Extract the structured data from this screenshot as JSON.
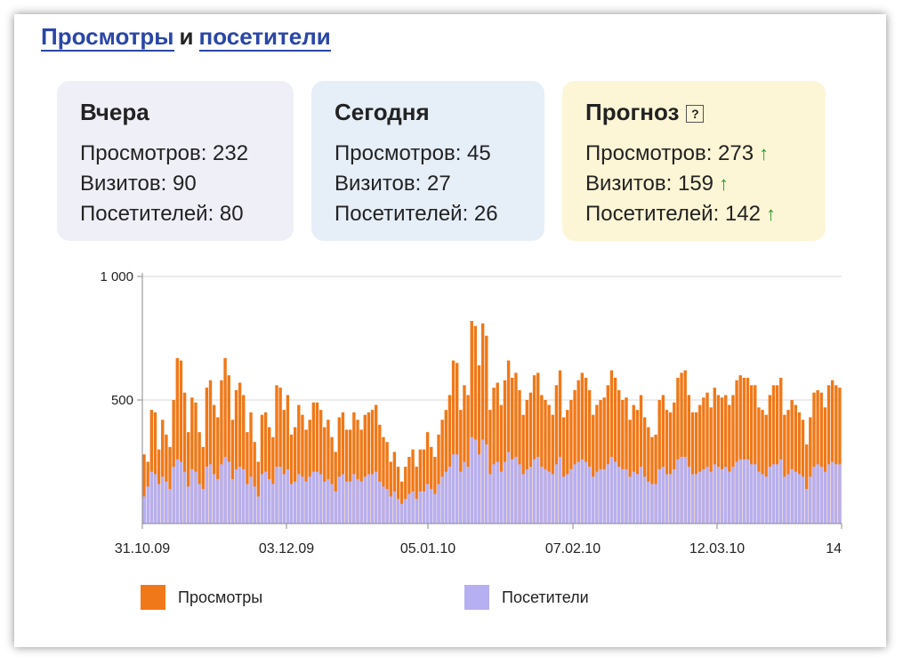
{
  "header": {
    "link1": "Просмотры",
    "conj": "и",
    "link2": "посетители"
  },
  "cards": [
    {
      "title": "Вчера",
      "rows": [
        "Просмотров: 232",
        "Визитов: 90",
        "Посетителей: 80"
      ],
      "bg": "#efeff8"
    },
    {
      "title": "Сегодня",
      "rows": [
        "Просмотров: 45",
        "Визитов: 27",
        "Посетителей: 26"
      ],
      "bg": "#e6eef8"
    },
    {
      "title": "Прогноз",
      "help": "?",
      "rows": [
        "Просмотров: 273",
        "Визитов: 159",
        "Посетителей: 142"
      ],
      "arrow": "↑",
      "bg": "#fdf6d6"
    }
  ],
  "chart_data": {
    "type": "bar",
    "y_ticks": [
      "1 000",
      "500"
    ],
    "ylim": [
      0,
      1000
    ],
    "x_tick_labels": [
      "31.10.09",
      "03.12.09",
      "05.01.10",
      "07.02.10",
      "12.03.10",
      "14"
    ],
    "series": [
      {
        "name": "Просмотры",
        "color": "#f07818",
        "values": [
          280,
          250,
          460,
          450,
          300,
          420,
          360,
          310,
          500,
          670,
          660,
          530,
          370,
          510,
          490,
          370,
          310,
          550,
          580,
          480,
          430,
          580,
          670,
          600,
          420,
          540,
          570,
          520,
          370,
          450,
          330,
          250,
          440,
          450,
          390,
          350,
          560,
          550,
          460,
          520,
          360,
          390,
          480,
          440,
          380,
          420,
          490,
          490,
          460,
          390,
          420,
          350,
          290,
          430,
          450,
          380,
          380,
          450,
          420,
          380,
          440,
          450,
          460,
          480,
          400,
          350,
          330,
          250,
          290,
          230,
          170,
          230,
          270,
          300,
          230,
          300,
          300,
          370,
          310,
          270,
          360,
          420,
          460,
          520,
          660,
          650,
          460,
          560,
          520,
          820,
          800,
          640,
          810,
          760,
          460,
          550,
          570,
          480,
          580,
          660,
          590,
          610,
          540,
          440,
          500,
          530,
          600,
          610,
          520,
          500,
          480,
          440,
          560,
          620,
          430,
          460,
          500,
          540,
          580,
          610,
          590,
          540,
          440,
          480,
          500,
          510,
          560,
          620,
          590,
          540,
          500,
          510,
          420,
          480,
          460,
          520,
          430,
          390,
          350,
          360,
          500,
          520,
          460,
          450,
          490,
          590,
          610,
          620,
          520,
          450,
          450,
          480,
          510,
          530,
          470,
          550,
          520,
          510,
          520,
          480,
          520,
          580,
          600,
          590,
          590,
          560,
          560,
          470,
          460,
          440,
          520,
          560,
          560,
          590,
          440,
          460,
          500,
          480,
          450,
          420,
          320,
          430,
          530,
          540,
          530,
          470,
          560,
          580,
          560,
          550
        ]
      },
      {
        "name": "Посетители",
        "color": "#b6aff2",
        "values": [
          110,
          150,
          210,
          200,
          160,
          190,
          170,
          140,
          230,
          260,
          250,
          210,
          150,
          220,
          210,
          160,
          140,
          230,
          240,
          200,
          180,
          240,
          270,
          250,
          180,
          220,
          230,
          220,
          160,
          190,
          150,
          110,
          200,
          210,
          180,
          160,
          230,
          230,
          200,
          220,
          160,
          170,
          200,
          190,
          170,
          190,
          210,
          210,
          200,
          170,
          180,
          160,
          130,
          190,
          200,
          170,
          170,
          200,
          180,
          170,
          190,
          200,
          200,
          210,
          170,
          150,
          140,
          110,
          130,
          100,
          80,
          100,
          120,
          130,
          100,
          130,
          130,
          160,
          140,
          120,
          160,
          190,
          210,
          230,
          280,
          280,
          210,
          250,
          230,
          350,
          340,
          280,
          340,
          320,
          200,
          240,
          250,
          210,
          250,
          290,
          260,
          270,
          240,
          200,
          220,
          230,
          260,
          270,
          230,
          220,
          210,
          200,
          240,
          270,
          190,
          200,
          220,
          240,
          250,
          260,
          250,
          230,
          190,
          210,
          220,
          220,
          240,
          270,
          250,
          230,
          220,
          220,
          190,
          210,
          200,
          230,
          190,
          170,
          160,
          160,
          220,
          230,
          200,
          200,
          220,
          260,
          270,
          270,
          230,
          200,
          200,
          210,
          220,
          230,
          210,
          240,
          230,
          220,
          230,
          210,
          230,
          250,
          260,
          260,
          260,
          240,
          240,
          210,
          200,
          190,
          230,
          240,
          240,
          260,
          190,
          200,
          220,
          210,
          200,
          190,
          140,
          190,
          230,
          240,
          230,
          210,
          240,
          250,
          240,
          240
        ]
      }
    ],
    "legend_placement": "bottom",
    "grid": "horizontal"
  }
}
